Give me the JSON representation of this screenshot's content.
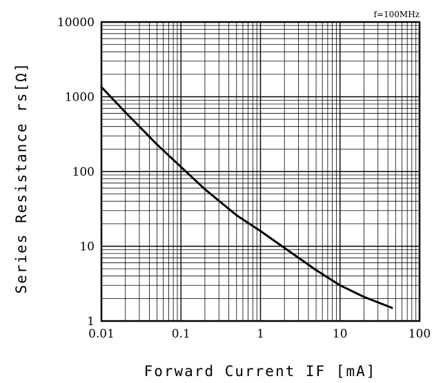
{
  "chart_data": {
    "type": "line",
    "x_scale": "log",
    "y_scale": "log",
    "xlim": [
      0.01,
      100
    ],
    "ylim": [
      1,
      10000
    ],
    "x_ticks": [
      "0.01",
      "0.1",
      "1",
      "10",
      "100"
    ],
    "y_ticks": [
      "1",
      "10",
      "100",
      "1000",
      "10000"
    ],
    "xlabel": "Forward Current IF [mA]",
    "ylabel": "Series Resistance rs[Ω]",
    "annotation": "f=100MHz",
    "grid": true,
    "series": [
      {
        "x": [
          0.01,
          0.02,
          0.05,
          0.1,
          0.2,
          0.5,
          1,
          2,
          5,
          10,
          20,
          45
        ],
        "y": [
          1350,
          620,
          230,
          115,
          58,
          26,
          16,
          9.5,
          4.8,
          3.0,
          2.1,
          1.5
        ]
      }
    ]
  }
}
